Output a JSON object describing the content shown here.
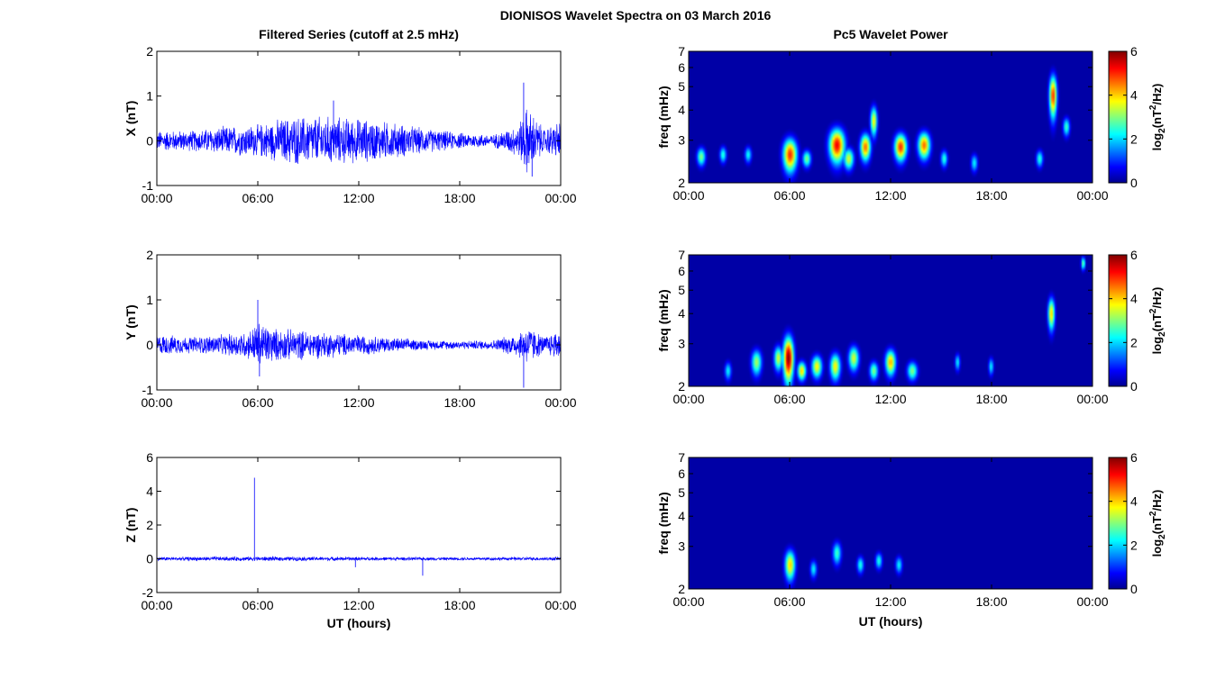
{
  "figure": {
    "title": "DIONISOS Wavelet Spectra on 03 March 2016",
    "left_column_title": "Filtered Series (cutoff at 2.5 mHz)",
    "right_column_title": "Pc5 Wavelet Power",
    "xlabel": "UT (hours)"
  },
  "colorbar": {
    "label_prefix": "log",
    "label_sub": "2",
    "label_open": "(nT",
    "label_sup": "2",
    "label_close": "/Hz)",
    "ticks": [
      "0",
      "2",
      "4",
      "6"
    ],
    "colormap": [
      "#00008f",
      "#0000ff",
      "#00ffff",
      "#ffff00",
      "#ff0000",
      "#800000"
    ]
  },
  "chart_data": [
    {
      "type": "line",
      "panel": "X",
      "ylabel": "X (nT)",
      "ylim": [
        -1,
        2
      ],
      "yticks": [
        "-1",
        "0",
        "1",
        "2"
      ],
      "xlim": [
        0,
        24
      ],
      "xticks": [
        "00:00",
        "06:00",
        "12:00",
        "18:00",
        "00:00"
      ],
      "color": "#0000ff",
      "series": [
        {
          "x_hours": [
            0,
            2,
            4,
            6,
            8,
            10,
            12,
            14,
            16,
            18,
            20,
            21.5,
            22,
            23,
            24
          ],
          "amplitude_nT": [
            0.25,
            0.25,
            0.35,
            0.4,
            0.6,
            0.6,
            0.55,
            0.45,
            0.3,
            0.2,
            0.15,
            0.4,
            0.85,
            0.3,
            0.5
          ],
          "spikes": [
            {
              "x_hours": 21.8,
              "y": 1.3
            },
            {
              "x_hours": 22.3,
              "y": -0.8
            },
            {
              "x_hours": 10.5,
              "y": 0.9
            }
          ]
        }
      ]
    },
    {
      "type": "line",
      "panel": "Y",
      "ylabel": "Y (nT)",
      "ylim": [
        -1,
        2
      ],
      "yticks": [
        "-1",
        "0",
        "1",
        "2"
      ],
      "xlim": [
        0,
        24
      ],
      "xticks": [
        "00:00",
        "06:00",
        "12:00",
        "18:00",
        "00:00"
      ],
      "color": "#0000ff",
      "series": [
        {
          "x_hours": [
            0,
            2,
            4,
            5.5,
            6,
            7,
            9,
            12,
            14,
            16,
            18,
            20,
            21.5,
            22,
            23,
            24
          ],
          "amplitude_nT": [
            0.25,
            0.2,
            0.25,
            0.35,
            0.6,
            0.4,
            0.35,
            0.25,
            0.18,
            0.12,
            0.1,
            0.12,
            0.3,
            0.5,
            0.2,
            0.4
          ],
          "spikes": [
            {
              "x_hours": 6.0,
              "y": 1.0
            },
            {
              "x_hours": 6.1,
              "y": -0.7
            },
            {
              "x_hours": 21.8,
              "y": -0.95
            }
          ]
        }
      ]
    },
    {
      "type": "line",
      "panel": "Z",
      "ylabel": "Z (nT)",
      "ylim": [
        -2,
        6
      ],
      "yticks": [
        "-2",
        "0",
        "2",
        "4",
        "6"
      ],
      "xlim": [
        0,
        24
      ],
      "xticks": [
        "00:00",
        "06:00",
        "12:00",
        "18:00",
        "00:00"
      ],
      "color": "#0000ff",
      "series": [
        {
          "x_hours": [
            0,
            6,
            12,
            18,
            24
          ],
          "amplitude_nT": [
            0.12,
            0.15,
            0.12,
            0.1,
            0.12
          ],
          "spikes": [
            {
              "x_hours": 5.8,
              "y": 4.8
            },
            {
              "x_hours": 15.8,
              "y": -1.0
            },
            {
              "x_hours": 11.8,
              "y": -0.5
            }
          ]
        }
      ]
    },
    {
      "type": "heatmap",
      "panel": "X",
      "ylabel": "freq (mHz)",
      "yscale": "log",
      "ylim": [
        2,
        7
      ],
      "yticks": [
        "2",
        "3",
        "4",
        "5",
        "6",
        "7"
      ],
      "xlim": [
        0,
        24
      ],
      "xticks": [
        "00:00",
        "06:00",
        "12:00",
        "18:00",
        "00:00"
      ],
      "clim": [
        0,
        6
      ],
      "blobs": [
        {
          "t": 0.7,
          "f": 2.55,
          "dt": 0.25,
          "df": 0.22,
          "v": 3.0
        },
        {
          "t": 2.0,
          "f": 2.6,
          "dt": 0.2,
          "df": 0.2,
          "v": 2.5
        },
        {
          "t": 3.5,
          "f": 2.6,
          "dt": 0.2,
          "df": 0.2,
          "v": 2.3
        },
        {
          "t": 6.0,
          "f": 2.6,
          "dt": 0.4,
          "df": 0.4,
          "v": 5.0
        },
        {
          "t": 7.0,
          "f": 2.5,
          "dt": 0.25,
          "df": 0.2,
          "v": 3.0
        },
        {
          "t": 8.8,
          "f": 2.85,
          "dt": 0.45,
          "df": 0.45,
          "v": 5.3
        },
        {
          "t": 9.5,
          "f": 2.5,
          "dt": 0.3,
          "df": 0.25,
          "v": 3.5
        },
        {
          "t": 10.5,
          "f": 2.8,
          "dt": 0.3,
          "df": 0.35,
          "v": 4.6
        },
        {
          "t": 11.0,
          "f": 3.6,
          "dt": 0.2,
          "df": 0.5,
          "v": 3.8
        },
        {
          "t": 12.6,
          "f": 2.8,
          "dt": 0.35,
          "df": 0.35,
          "v": 5.0
        },
        {
          "t": 14.0,
          "f": 2.85,
          "dt": 0.35,
          "df": 0.35,
          "v": 4.6
        },
        {
          "t": 15.2,
          "f": 2.5,
          "dt": 0.2,
          "df": 0.2,
          "v": 2.5
        },
        {
          "t": 17.0,
          "f": 2.4,
          "dt": 0.2,
          "df": 0.2,
          "v": 2.2
        },
        {
          "t": 20.9,
          "f": 2.5,
          "dt": 0.2,
          "df": 0.2,
          "v": 2.5
        },
        {
          "t": 21.7,
          "f": 4.6,
          "dt": 0.22,
          "df": 0.9,
          "v": 5.0
        },
        {
          "t": 22.5,
          "f": 3.4,
          "dt": 0.2,
          "df": 0.3,
          "v": 2.6
        }
      ]
    },
    {
      "type": "heatmap",
      "panel": "Y",
      "ylabel": "freq (mHz)",
      "yscale": "log",
      "ylim": [
        2,
        7
      ],
      "yticks": [
        "2",
        "3",
        "4",
        "5",
        "6",
        "7"
      ],
      "xlim": [
        0,
        24
      ],
      "xticks": [
        "00:00",
        "06:00",
        "12:00",
        "18:00",
        "00:00"
      ],
      "clim": [
        0,
        6
      ],
      "blobs": [
        {
          "t": 2.3,
          "f": 2.3,
          "dt": 0.2,
          "df": 0.2,
          "v": 2.2
        },
        {
          "t": 4.0,
          "f": 2.5,
          "dt": 0.3,
          "df": 0.3,
          "v": 3.2
        },
        {
          "t": 5.3,
          "f": 2.6,
          "dt": 0.25,
          "df": 0.3,
          "v": 3.5
        },
        {
          "t": 5.9,
          "f": 2.6,
          "dt": 0.3,
          "df": 0.55,
          "v": 6.0
        },
        {
          "t": 6.7,
          "f": 2.3,
          "dt": 0.25,
          "df": 0.2,
          "v": 4.0
        },
        {
          "t": 7.6,
          "f": 2.4,
          "dt": 0.3,
          "df": 0.25,
          "v": 3.8
        },
        {
          "t": 8.7,
          "f": 2.4,
          "dt": 0.3,
          "df": 0.3,
          "v": 3.8
        },
        {
          "t": 9.8,
          "f": 2.6,
          "dt": 0.3,
          "df": 0.3,
          "v": 3.5
        },
        {
          "t": 11.0,
          "f": 2.3,
          "dt": 0.25,
          "df": 0.2,
          "v": 3.0
        },
        {
          "t": 12.0,
          "f": 2.5,
          "dt": 0.3,
          "df": 0.3,
          "v": 4.2
        },
        {
          "t": 13.3,
          "f": 2.3,
          "dt": 0.3,
          "df": 0.2,
          "v": 3.0
        },
        {
          "t": 16.0,
          "f": 2.5,
          "dt": 0.15,
          "df": 0.2,
          "v": 2.2
        },
        {
          "t": 18.0,
          "f": 2.4,
          "dt": 0.15,
          "df": 0.2,
          "v": 2.2
        },
        {
          "t": 21.6,
          "f": 4.0,
          "dt": 0.2,
          "df": 0.6,
          "v": 4.0
        },
        {
          "t": 23.5,
          "f": 6.5,
          "dt": 0.12,
          "df": 0.4,
          "v": 3.0
        }
      ]
    },
    {
      "type": "heatmap",
      "panel": "Z",
      "ylabel": "freq (mHz)",
      "yscale": "log",
      "ylim": [
        2,
        7
      ],
      "yticks": [
        "2",
        "3",
        "4",
        "5",
        "6",
        "7"
      ],
      "xlim": [
        0,
        24
      ],
      "xticks": [
        "00:00",
        "06:00",
        "12:00",
        "18:00",
        "00:00"
      ],
      "clim": [
        0,
        6
      ],
      "blobs": [
        {
          "t": 6.0,
          "f": 2.5,
          "dt": 0.3,
          "df": 0.35,
          "v": 4.0
        },
        {
          "t": 7.4,
          "f": 2.4,
          "dt": 0.2,
          "df": 0.2,
          "v": 2.2
        },
        {
          "t": 8.8,
          "f": 2.8,
          "dt": 0.25,
          "df": 0.3,
          "v": 2.6
        },
        {
          "t": 10.2,
          "f": 2.5,
          "dt": 0.2,
          "df": 0.2,
          "v": 2.4
        },
        {
          "t": 11.3,
          "f": 2.6,
          "dt": 0.2,
          "df": 0.2,
          "v": 2.4
        },
        {
          "t": 12.5,
          "f": 2.5,
          "dt": 0.2,
          "df": 0.2,
          "v": 2.2
        }
      ]
    }
  ]
}
